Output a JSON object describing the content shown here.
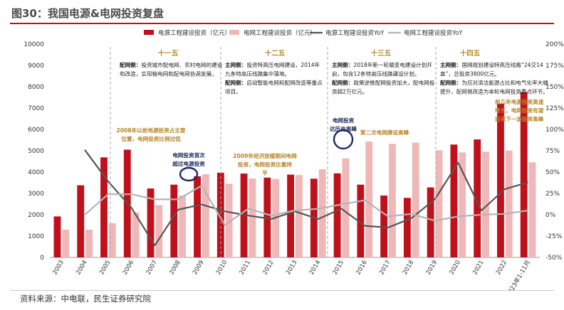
{
  "figure": {
    "title": "图30：我国电源&电网投资复盘",
    "source": "资料来源：中电联，民生证券研究院"
  },
  "colors": {
    "power_bar": "#c0101b",
    "grid_bar": "#efb7b7",
    "power_line": "#555555",
    "grid_line": "#b4b4b4",
    "era_gold": "#b8862a",
    "navy": "#1e2a5a",
    "circle": "#1c2b63"
  },
  "chart_data": {
    "type": "bar",
    "categories": [
      "2003",
      "2004",
      "2005",
      "2006",
      "2007",
      "2008",
      "2009",
      "2010",
      "2011",
      "2012",
      "2013",
      "2014",
      "2015",
      "2016",
      "2017",
      "2018",
      "2019",
      "2020",
      "2021",
      "2022",
      "2023年1-11月"
    ],
    "series": [
      {
        "name": "电源工程建设投资（亿元）",
        "kind": "bar",
        "axis": "left",
        "values": [
          1920,
          3380,
          4690,
          5050,
          3230,
          3410,
          3800,
          3970,
          3930,
          3740,
          3880,
          3690,
          3940,
          3410,
          2900,
          2790,
          3280,
          5290,
          5530,
          7210,
          7750
        ]
      },
      {
        "name": "电网工程建设投资（亿元）",
        "kind": "bar",
        "axis": "left",
        "values": [
          1300,
          1300,
          1600,
          2100,
          2450,
          2900,
          3900,
          3450,
          3700,
          3680,
          3860,
          4130,
          4640,
          5430,
          5320,
          5380,
          5020,
          4920,
          4950,
          5010,
          4460
        ]
      },
      {
        "name": "电源工程建设投资YoY",
        "kind": "line",
        "axis": "right",
        "values": [
          null,
          76,
          39,
          8,
          -36,
          6,
          12,
          4,
          -1,
          -5,
          4,
          -5,
          7,
          -13,
          -15,
          -4,
          18,
          61,
          5,
          30,
          38
        ]
      },
      {
        "name": "电网工程建设投资YoY",
        "kind": "line",
        "axis": "right",
        "values": [
          null,
          0,
          24,
          24,
          18,
          18,
          34,
          -12,
          7,
          -1,
          5,
          7,
          12,
          17,
          -2,
          1,
          -7,
          -2,
          0,
          1,
          5
        ]
      }
    ],
    "ylim_left": [
      0,
      10000
    ],
    "yticks_left": [
      "0",
      "1000",
      "2000",
      "3000",
      "4000",
      "5000",
      "6000",
      "7000",
      "8000",
      "9000",
      "10000"
    ],
    "ylim_right": [
      -50,
      200
    ],
    "yticks_right": [
      "-50%",
      "-25%",
      "0%",
      "25%",
      "50%",
      "75%",
      "100%",
      "125%",
      "150%",
      "175%",
      "200%"
    ],
    "legend_position": "top",
    "eras": [
      {
        "label": "十一五",
        "lines": [
          {
            "bold": "配网侧：",
            "text": "投资城市配电网、农村电网的建设"
          },
          {
            "bold": "",
            "text": "和改造，实现输电网和配电网协调发展。"
          }
        ]
      },
      {
        "label": "十二五",
        "lines": [
          {
            "bold": "主网侧：",
            "text": "投资特高压电网建设，2014年"
          },
          {
            "bold": "",
            "text": "九条特高压线路集中落地。"
          },
          {
            "bold": "配网侧：",
            "text": "启动智能电网和配网改造等重点"
          },
          {
            "bold": "",
            "text": "项目。"
          }
        ]
      },
      {
        "label": "十三五",
        "lines": [
          {
            "bold": "主网侧：",
            "text": "2018年新一轮输变电建设计划开"
          },
          {
            "bold": "",
            "text": "启，包含12条特高压线路建设计划。"
          },
          {
            "bold": "配网侧：",
            "text": "政策逆推配网投资加大，配电网投"
          },
          {
            "bold": "",
            "text": "资超2万亿元。"
          }
        ]
      },
      {
        "label": "十四五",
        "lines": [
          {
            "bold": "主网侧：",
            "text": "国网规划建设特高压线路“24交14"
          },
          {
            "bold": "",
            "text": "直”，总投资3800亿元。"
          },
          {
            "bold": "配网侧：",
            "text": "为应对清洁能源占比和电气化率大幅"
          },
          {
            "bold": "",
            "text": "提升，配网侧改造为本轮电网投资重点环节。"
          }
        ]
      }
    ],
    "annotations": [
      {
        "id": "a2008",
        "lines": [
          "2008年以前电源投资占主要",
          "位置，电网投资比例过低"
        ]
      },
      {
        "id": "a2009",
        "lines": [
          "电网投资首次",
          "超过电源投资"
        ]
      },
      {
        "id": "a2009b",
        "lines": [
          "2009年经济放缓期间电网",
          "投资，电网投资比重持",
          "平"
        ]
      },
      {
        "id": "a2016",
        "lines": [
          "电网投资",
          "达历史高峰"
        ]
      },
      {
        "id": "a2016b",
        "lines": [
          "第二次电网建设高峰"
        ]
      },
      {
        "id": "a2023",
        "lines": [
          "前几年电源投资高速",
          "增长，电网投资有望",
          "迎来下一波投资高峰"
        ]
      }
    ]
  }
}
